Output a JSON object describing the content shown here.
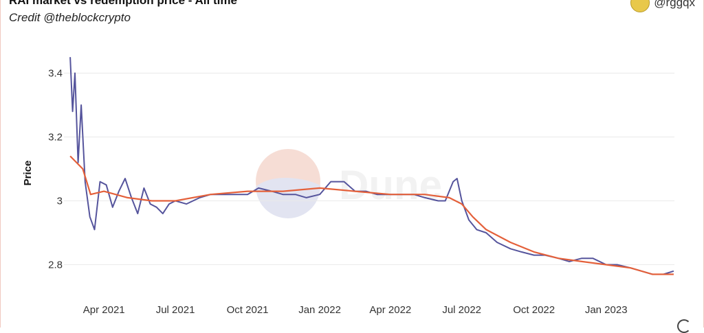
{
  "header": {
    "title": "RAI market vs redemption price - All time",
    "credit": "Credit @theblockcrypto",
    "handle": "@rggqx"
  },
  "watermark": {
    "text": "Dune"
  },
  "chart_data": {
    "type": "line",
    "title": "RAI market vs redemption price - All time",
    "subtitle": "Credit @theblockcrypto",
    "xlabel": "",
    "ylabel": "Price",
    "ylim": [
      2.7,
      3.5
    ],
    "xlim": [
      "2021-02-16",
      "2023-03-29"
    ],
    "grid": true,
    "x_ticks": [
      "Apr 2021",
      "Jul 2021",
      "Oct 2021",
      "Jan 2022",
      "Apr 2022",
      "Jul 2022",
      "Oct 2022",
      "Jan 2023"
    ],
    "y_ticks": [
      "2.8",
      "3",
      "3.2",
      "3.4"
    ],
    "y_tick_values": [
      2.8,
      3.0,
      3.2,
      3.4
    ],
    "series": [
      {
        "color": "#55549c",
        "x": [
          "2021-02-17",
          "2021-02-20",
          "2021-02-23",
          "2021-02-27",
          "2021-03-03",
          "2021-03-08",
          "2021-03-14",
          "2021-03-20",
          "2021-03-27",
          "2021-04-04",
          "2021-04-12",
          "2021-04-20",
          "2021-04-28",
          "2021-05-06",
          "2021-05-14",
          "2021-05-22",
          "2021-05-30",
          "2021-06-07",
          "2021-06-15",
          "2021-06-23",
          "2021-07-01",
          "2021-07-15",
          "2021-08-01",
          "2021-08-15",
          "2021-09-01",
          "2021-09-15",
          "2021-10-01",
          "2021-10-15",
          "2021-11-01",
          "2021-11-15",
          "2021-12-01",
          "2021-12-15",
          "2022-01-01",
          "2022-01-15",
          "2022-02-01",
          "2022-02-15",
          "2022-03-01",
          "2022-03-15",
          "2022-04-01",
          "2022-04-15",
          "2022-05-01",
          "2022-05-15",
          "2022-06-01",
          "2022-06-10",
          "2022-06-20",
          "2022-06-25",
          "2022-07-01",
          "2022-07-10",
          "2022-07-20",
          "2022-08-01",
          "2022-08-15",
          "2022-09-01",
          "2022-09-15",
          "2022-10-01",
          "2022-10-15",
          "2022-11-01",
          "2022-11-15",
          "2022-12-01",
          "2022-12-15",
          "2023-01-01",
          "2023-01-15",
          "2023-02-01",
          "2023-02-15",
          "2023-03-01",
          "2023-03-15",
          "2023-03-28"
        ],
        "values": [
          3.45,
          3.28,
          3.4,
          3.12,
          3.3,
          3.06,
          2.95,
          2.91,
          3.06,
          3.05,
          2.98,
          3.03,
          3.07,
          3.01,
          2.96,
          3.04,
          2.99,
          2.98,
          2.96,
          2.99,
          3.0,
          2.99,
          3.01,
          3.02,
          3.02,
          3.02,
          3.02,
          3.04,
          3.03,
          3.02,
          3.02,
          3.01,
          3.02,
          3.06,
          3.06,
          3.03,
          3.03,
          3.02,
          3.02,
          3.02,
          3.02,
          3.01,
          3.0,
          3.0,
          3.06,
          3.07,
          3.0,
          2.94,
          2.91,
          2.9,
          2.87,
          2.85,
          2.84,
          2.83,
          2.83,
          2.82,
          2.81,
          2.82,
          2.82,
          2.8,
          2.8,
          2.79,
          2.78,
          2.77,
          2.77,
          2.78
        ]
      },
      {
        "color": "#e4603a",
        "x": [
          "2021-02-17",
          "2021-03-05",
          "2021-03-15",
          "2021-04-01",
          "2021-05-01",
          "2021-06-01",
          "2021-07-01",
          "2021-08-15",
          "2021-10-01",
          "2021-11-15",
          "2022-01-01",
          "2022-02-15",
          "2022-04-01",
          "2022-05-15",
          "2022-06-15",
          "2022-07-01",
          "2022-07-15",
          "2022-08-01",
          "2022-09-01",
          "2022-10-01",
          "2022-11-01",
          "2022-12-01",
          "2023-01-01",
          "2023-02-01",
          "2023-03-01",
          "2023-03-28"
        ],
        "values": [
          3.14,
          3.1,
          3.02,
          3.03,
          3.01,
          3.0,
          3.0,
          3.02,
          3.03,
          3.03,
          3.04,
          3.03,
          3.02,
          3.02,
          3.01,
          2.99,
          2.95,
          2.91,
          2.87,
          2.84,
          2.82,
          2.81,
          2.8,
          2.79,
          2.77,
          2.77
        ]
      }
    ]
  }
}
